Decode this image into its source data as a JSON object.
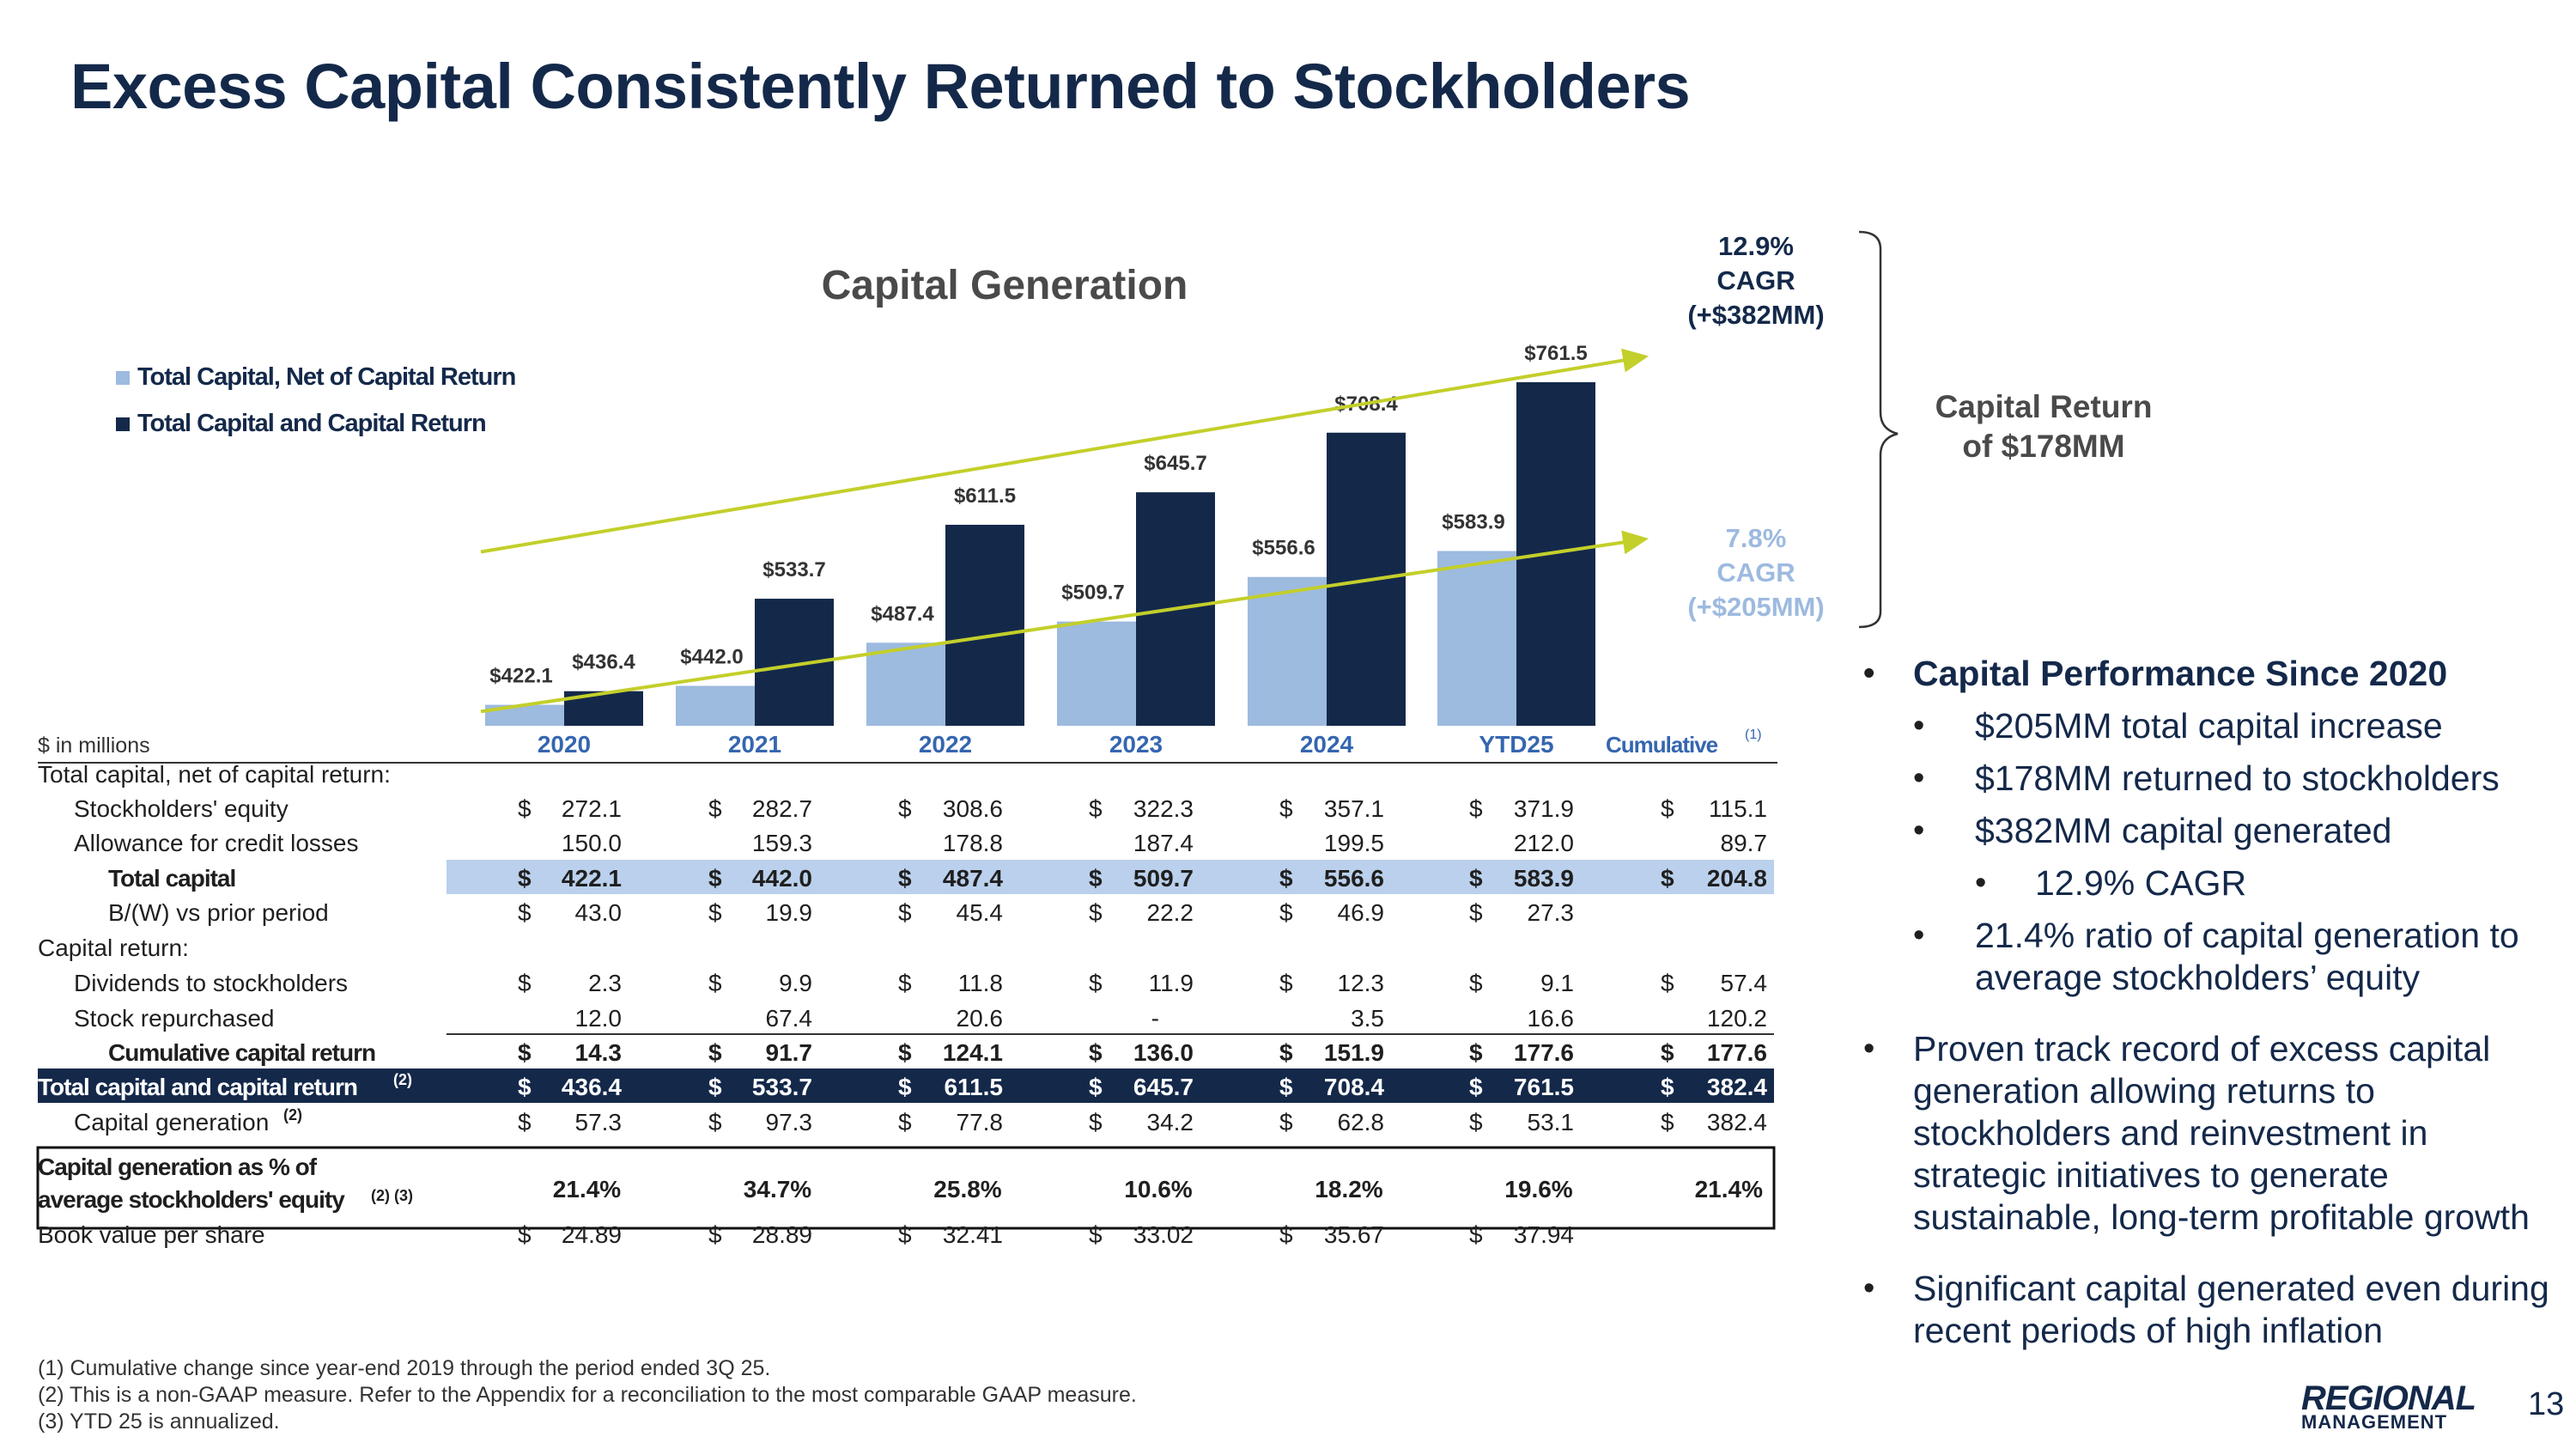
{
  "title": "Excess Capital Consistently Returned to Stockholders",
  "chart_data": {
    "type": "bar",
    "title": "Capital Generation",
    "categories": [
      "2020",
      "2021",
      "2022",
      "2023",
      "2024",
      "YTD25"
    ],
    "series": [
      {
        "name": "Total Capital, Net of Capital Return",
        "color": "#9dbadf",
        "values": [
          422.1,
          442.0,
          487.4,
          509.7,
          556.6,
          583.9
        ],
        "labels": [
          "$422.1",
          "$442.0",
          "$487.4",
          "$509.7",
          "$556.6",
          "$583.9"
        ]
      },
      {
        "name": "Total Capital and Capital Return",
        "color": "#14294a",
        "values": [
          436.4,
          533.7,
          611.5,
          645.7,
          708.4,
          761.5
        ],
        "labels": [
          "$436.4",
          "$533.7",
          "$611.5",
          "$645.7",
          "$708.4",
          "$761.5"
        ]
      }
    ],
    "ylim": [
      400,
      780
    ],
    "trend_lines": [
      {
        "name": "upper",
        "from": 583,
        "to": 789,
        "color": "#c3cf2a"
      },
      {
        "name": "lower",
        "from": 415,
        "to": 597,
        "color": "#c3cf2a"
      }
    ],
    "annotations": {
      "upper_cagr": [
        "12.9%",
        "CAGR",
        "(+$382MM)"
      ],
      "lower_cagr": [
        "7.8%",
        "CAGR",
        "(+$205MM)"
      ],
      "capital_return": [
        "Capital Return",
        "of $178MM"
      ]
    },
    "cumulative_label": "Cumulative",
    "cumulative_sup": "(1)",
    "unit_label": "$ in millions"
  },
  "table": {
    "rows": [
      {
        "label": "Total capital, net of capital return:",
        "style": "section"
      },
      {
        "label": "Stockholders' equity",
        "style": "indent",
        "dollar": true,
        "values": [
          "272.1",
          "282.7",
          "308.6",
          "322.3",
          "357.1",
          "371.9",
          "115.1"
        ]
      },
      {
        "label": "Allowance for credit losses",
        "style": "indent",
        "dollar": false,
        "values": [
          "150.0",
          "159.3",
          "178.8",
          "187.4",
          "199.5",
          "212.0",
          "89.7"
        ]
      },
      {
        "label": "Total capital",
        "style": "highlight-light",
        "dollar": true,
        "values": [
          "422.1",
          "442.0",
          "487.4",
          "509.7",
          "556.6",
          "583.9",
          "204.8"
        ]
      },
      {
        "label": "B/(W) vs prior period",
        "style": "indent2",
        "dollar": true,
        "values": [
          "43.0",
          "19.9",
          "45.4",
          "22.2",
          "46.9",
          "27.3",
          ""
        ]
      },
      {
        "label": "Capital return:",
        "style": "section"
      },
      {
        "label": "Dividends to stockholders",
        "style": "indent",
        "dollar": true,
        "values": [
          "2.3",
          "9.9",
          "11.8",
          "11.9",
          "12.3",
          "9.1",
          "57.4"
        ]
      },
      {
        "label": "Stock repurchased",
        "style": "indent",
        "dollar": false,
        "values": [
          "12.0",
          "67.4",
          "20.6",
          "-",
          "3.5",
          "16.6",
          "120.2"
        ]
      },
      {
        "label": "Cumulative capital return",
        "style": "bold-indent",
        "dollar": true,
        "values": [
          "14.3",
          "91.7",
          "124.1",
          "136.0",
          "151.9",
          "177.6",
          "177.6"
        ]
      },
      {
        "label": "Total capital and capital return",
        "sup": "(2)",
        "style": "highlight-dark",
        "dollar": true,
        "values": [
          "436.4",
          "533.7",
          "611.5",
          "645.7",
          "708.4",
          "761.5",
          "382.4"
        ]
      },
      {
        "label": "Capital generation",
        "sup": "(2)",
        "style": "indent",
        "dollar": true,
        "values": [
          "57.3",
          "97.3",
          "77.8",
          "34.2",
          "62.8",
          "53.1",
          "382.4"
        ]
      },
      {
        "label": "Capital generation as % of",
        "label2": "average stockholders' equity",
        "sup": "(2) (3)",
        "style": "boxed",
        "dollar": false,
        "values": [
          "21.4%",
          "34.7%",
          "25.8%",
          "10.6%",
          "18.2%",
          "19.6%",
          "21.4%"
        ]
      },
      {
        "label": "Book value per share",
        "style": "plain",
        "dollar": true,
        "values": [
          "24.89",
          "28.89",
          "32.41",
          "33.02",
          "35.67",
          "37.94",
          ""
        ]
      }
    ]
  },
  "sidebar": {
    "heading": "Capital Performance Since 2020",
    "sub_items": [
      "$205MM total capital increase",
      "$178MM returned to stockholders",
      "$382MM capital generated"
    ],
    "sub_sub_item": "12.9% CAGR",
    "sub_item_last": "21.4% ratio of capital generation to average stockholders’ equity",
    "bullet2": "Proven track record of excess capital generation allowing returns to stockholders and reinvestment in strategic initiatives to generate sustainable, long-term profitable growth",
    "bullet3": "Significant capital generated even during recent periods of high inflation"
  },
  "footnotes": [
    "(1) Cumulative change since year-end 2019 through the period ended 3Q 25.",
    "(2) This is a non-GAAP measure. Refer to the Appendix for a reconciliation to the most comparable GAAP measure.",
    "(3) YTD 25 is annualized."
  ],
  "logo": {
    "line1": "REGIONAL",
    "line2": "MANAGEMENT"
  },
  "page_number": "13"
}
